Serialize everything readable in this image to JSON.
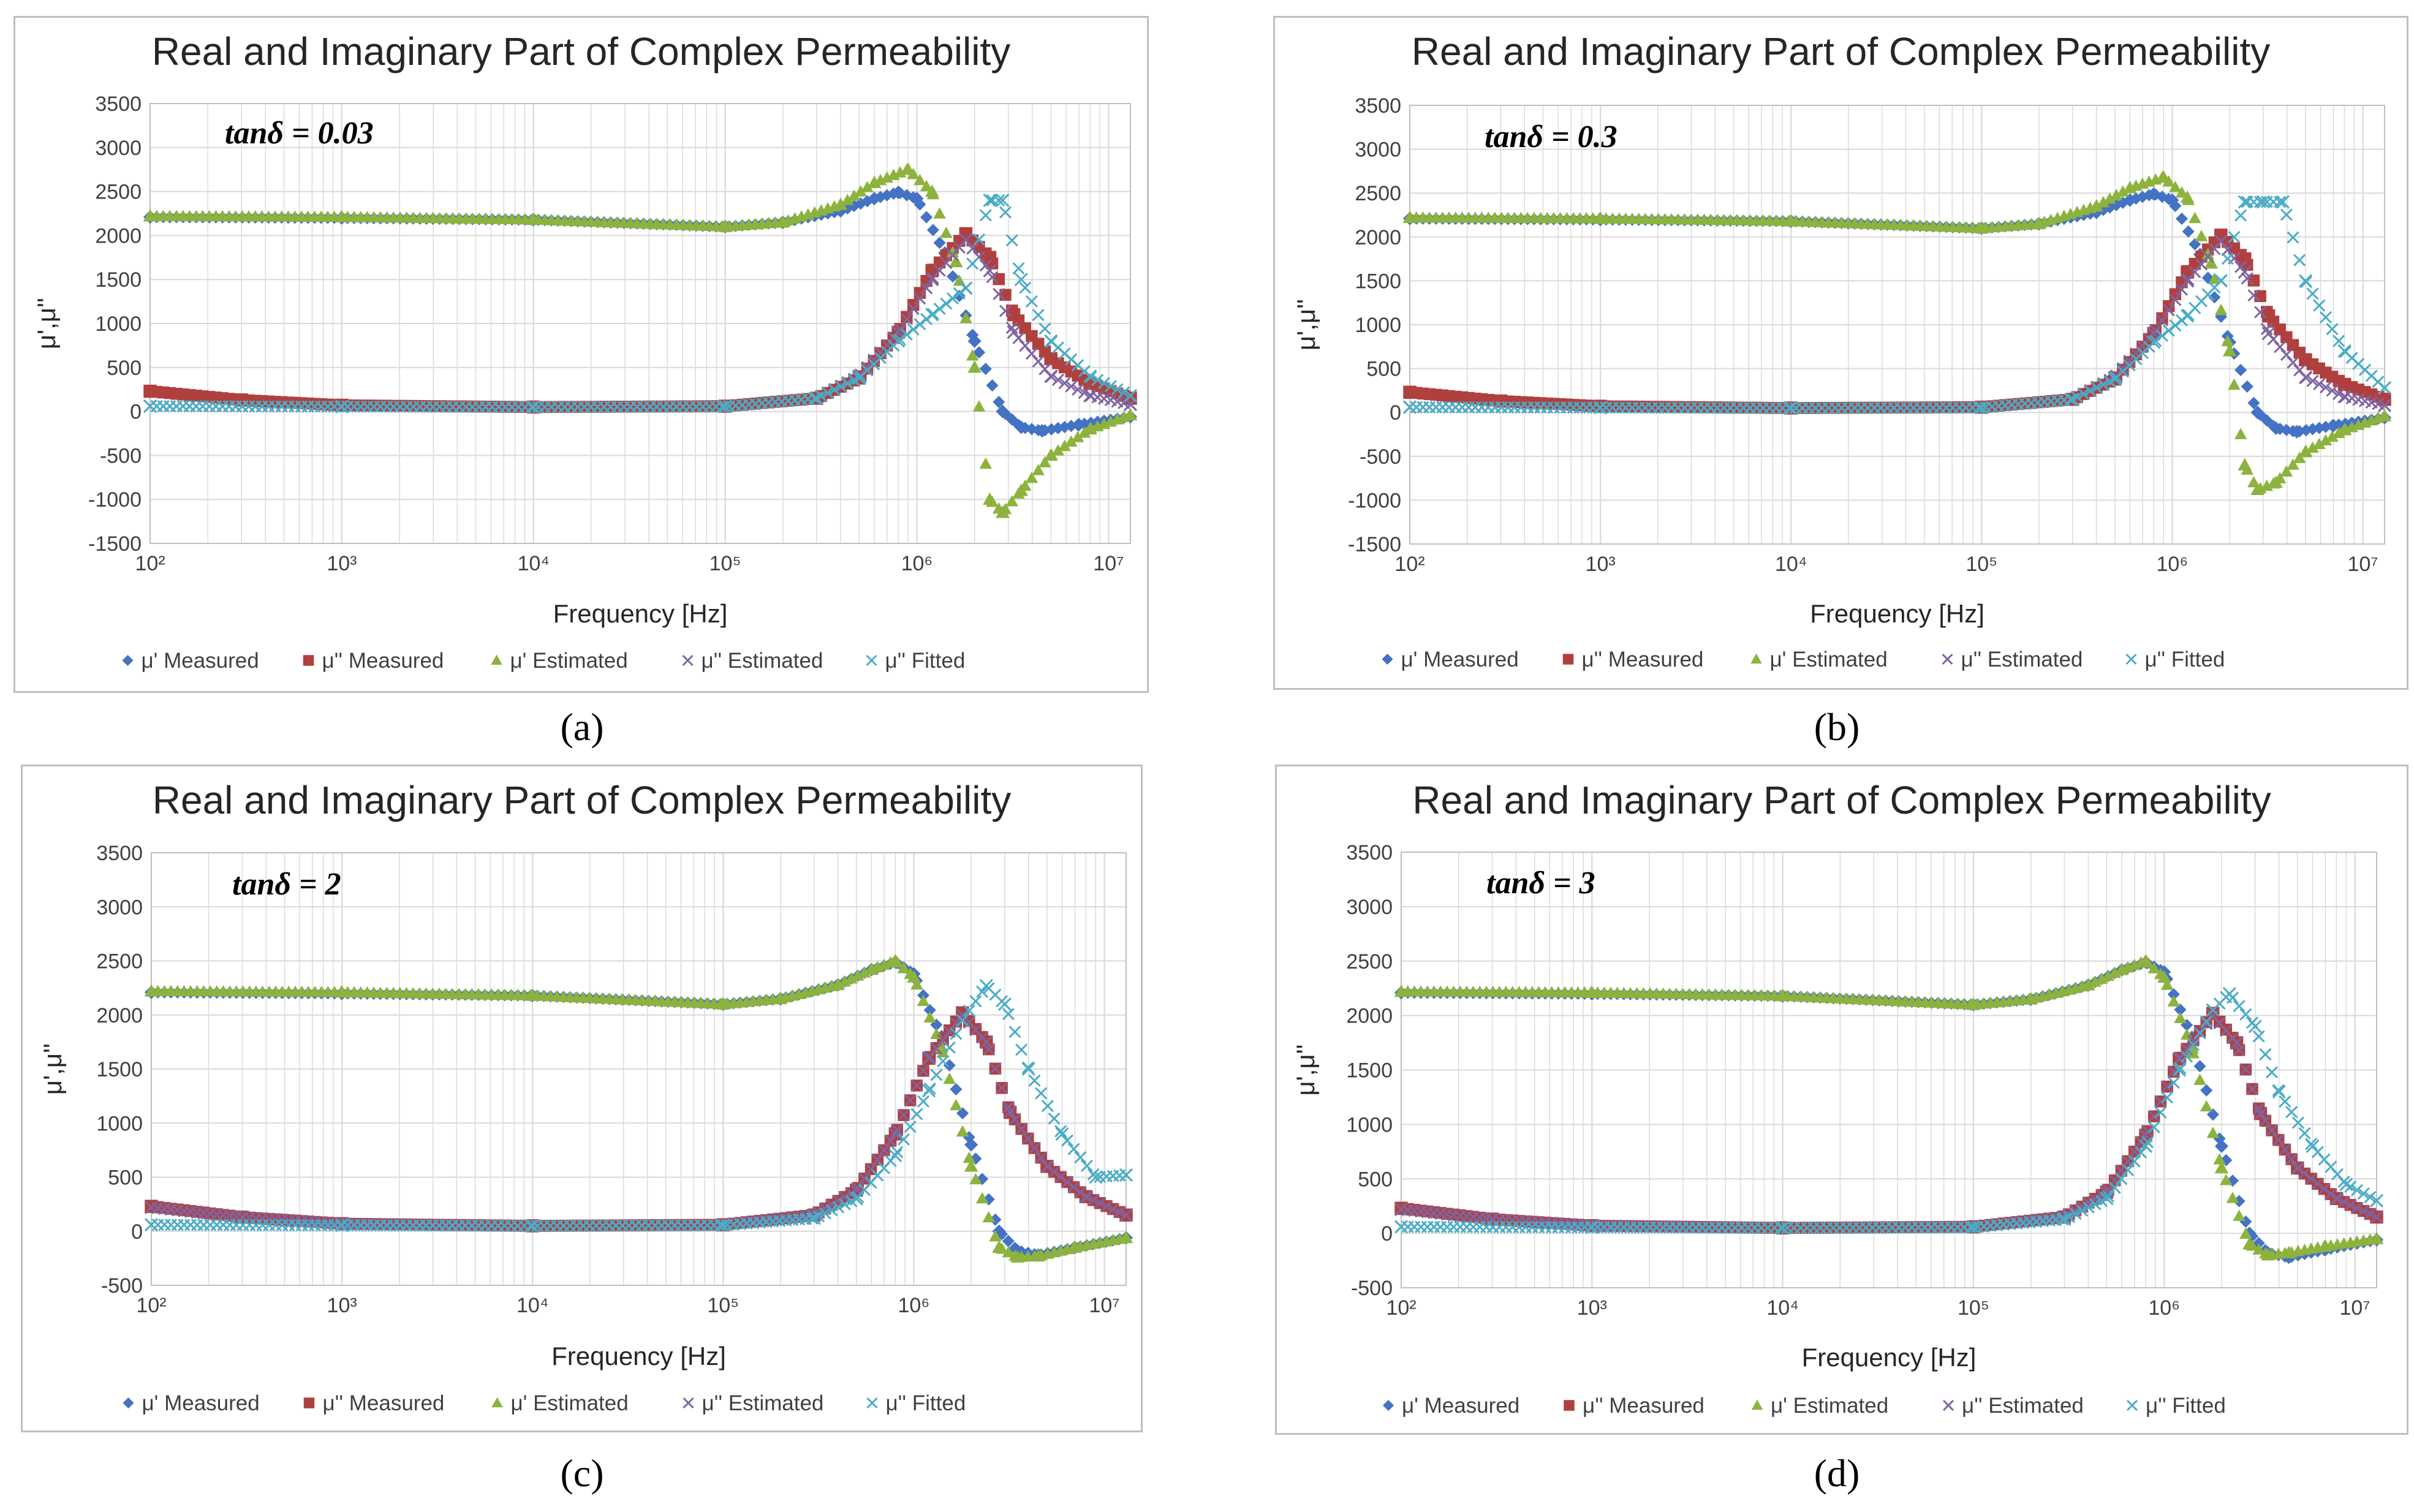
{
  "figure": {
    "colors": {
      "mu_re_measured": "#4472c4",
      "mu_im_measured": "#b0403e",
      "mu_re_estimated": "#8db33e",
      "mu_im_estimated": "#7f64a2",
      "mu_im_fitted": "#4bacc6",
      "grid": "#d9d9d9",
      "frame": "#bfbfbf"
    }
  },
  "chart_data": [
    {
      "panel": "(a)",
      "type": "scatter",
      "title": "Real and Imaginary Part of Complex Permeability",
      "annotation": "tanδ = 0.03",
      "xlabel": "Frequency [Hz]",
      "ylabel": "μ',μ''",
      "xscale": "log",
      "xlim": [
        100,
        13000000
      ],
      "ylim": [
        -1500,
        3500
      ],
      "ystep": 500,
      "xticks": [
        "10²",
        "10³",
        "10⁴",
        "10⁵",
        "10⁶",
        "10⁷"
      ],
      "yticks": [
        "3500",
        "3000",
        "2500",
        "2000",
        "1500",
        "1000",
        "500",
        "0",
        "-500",
        "-1000",
        "-1500"
      ],
      "legend": [
        "μ' Measured",
        "μ'' Measured",
        "μ' Estimated",
        "μ'' Estimated",
        "μ'' Fitted"
      ],
      "series": [
        {
          "name": "μ' Measured",
          "marker": "diamond",
          "color": "#4472c4",
          "x": [
            100,
            1000,
            10000,
            100000,
            200000,
            400000,
            600000,
            800000,
            1000000,
            1400000,
            2000000,
            2800000,
            3500000,
            4500000,
            7000000,
            13000000
          ],
          "y": [
            2210,
            2200,
            2180,
            2100,
            2150,
            2280,
            2420,
            2490,
            2420,
            1800,
            800,
            0,
            -180,
            -220,
            -150,
            -60
          ]
        },
        {
          "name": "μ'' Measured",
          "marker": "square",
          "color": "#b0403e",
          "x": [
            100,
            300,
            1000,
            10000,
            100000,
            300000,
            500000,
            800000,
            1200000,
            1800000,
            2400000,
            3200000,
            5000000,
            8000000,
            13000000
          ],
          "y": [
            230,
            130,
            70,
            50,
            60,
            150,
            380,
            900,
            1600,
            2020,
            1750,
            1100,
            600,
            320,
            150
          ]
        },
        {
          "name": "μ' Estimated",
          "marker": "triangle",
          "color": "#8db33e",
          "x": [
            100,
            1000,
            10000,
            100000,
            200000,
            400000,
            600000,
            900000,
            1200000,
            1600000,
            2000000,
            2400000,
            2800000,
            3500000,
            5000000,
            8000000,
            13000000
          ],
          "y": [
            2220,
            2210,
            2180,
            2100,
            2150,
            2350,
            2600,
            2750,
            2500,
            1700,
            500,
            -1000,
            -1150,
            -900,
            -500,
            -200,
            -40
          ]
        },
        {
          "name": "μ'' Estimated",
          "marker": "x",
          "color": "#7f64a2",
          "x": [
            100,
            1000,
            10000,
            100000,
            300000,
            500000,
            800000,
            1200000,
            1800000,
            2400000,
            3200000,
            5000000,
            8000000,
            13000000
          ],
          "y": [
            60,
            55,
            50,
            55,
            150,
            400,
            900,
            1500,
            1950,
            1600,
            900,
            400,
            180,
            80
          ]
        },
        {
          "name": "μ'' Fitted",
          "marker": "x",
          "color": "#4bacc6",
          "x": [
            100,
            1000,
            10000,
            100000,
            300000,
            500000,
            800000,
            1200000,
            1800000,
            2400000,
            2800000,
            3500000,
            5000000,
            8000000,
            13000000
          ],
          "y": [
            60,
            55,
            50,
            55,
            150,
            380,
            800,
            1100,
            1400,
            2400,
            2400,
            1500,
            800,
            400,
            180
          ]
        }
      ]
    },
    {
      "panel": "(b)",
      "type": "scatter",
      "title": "Real and Imaginary Part of Complex Permeability",
      "annotation": "tanδ = 0.3",
      "xlabel": "Frequency [Hz]",
      "ylabel": "μ',μ''",
      "xscale": "log",
      "xlim": [
        100,
        13000000
      ],
      "ylim": [
        -1500,
        3500
      ],
      "ystep": 500,
      "xticks": [
        "10²",
        "10³",
        "10⁴",
        "10⁵",
        "10⁶",
        "10⁷"
      ],
      "yticks": [
        "3500",
        "3000",
        "2500",
        "2000",
        "1500",
        "1000",
        "500",
        "0",
        "-500",
        "-1000",
        "-1500"
      ],
      "legend": [
        "μ' Measured",
        "μ'' Measured",
        "μ' Estimated",
        "μ'' Estimated",
        "μ'' Fitted"
      ],
      "series": [
        {
          "name": "μ' Measured",
          "marker": "diamond",
          "color": "#4472c4",
          "x": [
            100,
            1000,
            10000,
            100000,
            200000,
            400000,
            600000,
            800000,
            1000000,
            1400000,
            2000000,
            2800000,
            3500000,
            4500000,
            7000000,
            13000000
          ],
          "y": [
            2210,
            2200,
            2180,
            2100,
            2150,
            2280,
            2420,
            2490,
            2420,
            1800,
            800,
            0,
            -180,
            -220,
            -150,
            -60
          ]
        },
        {
          "name": "μ'' Measured",
          "marker": "square",
          "color": "#b0403e",
          "x": [
            100,
            300,
            1000,
            10000,
            100000,
            300000,
            500000,
            800000,
            1200000,
            1800000,
            2400000,
            3200000,
            5000000,
            8000000,
            13000000
          ],
          "y": [
            230,
            130,
            70,
            50,
            60,
            150,
            380,
            900,
            1600,
            2020,
            1750,
            1100,
            600,
            320,
            150
          ]
        },
        {
          "name": "μ' Estimated",
          "marker": "triangle",
          "color": "#8db33e",
          "x": [
            100,
            1000,
            10000,
            100000,
            200000,
            400000,
            600000,
            900000,
            1200000,
            1600000,
            2000000,
            2400000,
            2800000,
            3500000,
            5000000,
            8000000,
            13000000
          ],
          "y": [
            2220,
            2210,
            2180,
            2100,
            2150,
            2350,
            2560,
            2680,
            2450,
            1700,
            700,
            -600,
            -880,
            -800,
            -450,
            -200,
            -40
          ]
        },
        {
          "name": "μ'' Estimated",
          "marker": "x",
          "color": "#7f64a2",
          "x": [
            100,
            1000,
            10000,
            100000,
            300000,
            500000,
            800000,
            1200000,
            1800000,
            2400000,
            3200000,
            5000000,
            8000000,
            13000000
          ],
          "y": [
            60,
            55,
            50,
            55,
            150,
            400,
            900,
            1500,
            1950,
            1600,
            900,
            400,
            180,
            80
          ]
        },
        {
          "name": "μ'' Fitted",
          "marker": "x",
          "color": "#4bacc6",
          "x": [
            100,
            1000,
            10000,
            100000,
            300000,
            500000,
            800000,
            1200000,
            1800000,
            2400000,
            3000000,
            3800000,
            5000000,
            8000000,
            13000000
          ],
          "y": [
            60,
            55,
            50,
            55,
            150,
            380,
            800,
            1100,
            1500,
            2400,
            2400,
            2400,
            1500,
            700,
            280
          ]
        }
      ]
    },
    {
      "panel": "(c)",
      "type": "scatter",
      "title": "Real and Imaginary Part of Complex Permeability",
      "annotation": "tanδ = 2",
      "xlabel": "Frequency [Hz]",
      "ylabel": "μ',μ''",
      "xscale": "log",
      "xlim": [
        100,
        13000000
      ],
      "ylim": [
        -500,
        3500
      ],
      "ystep": 500,
      "xticks": [
        "10²",
        "10³",
        "10⁴",
        "10⁵",
        "10⁶",
        "10⁷"
      ],
      "yticks": [
        "3500",
        "3000",
        "2500",
        "2000",
        "1500",
        "1000",
        "500",
        "0",
        "-500"
      ],
      "legend": [
        "μ' Measured",
        "μ'' Measured",
        "μ' Estimated",
        "μ'' Estimated",
        "μ'' Fitted"
      ],
      "series": [
        {
          "name": "μ' Measured",
          "marker": "diamond",
          "color": "#4472c4",
          "x": [
            100,
            1000,
            10000,
            100000,
            200000,
            400000,
            600000,
            800000,
            1000000,
            1400000,
            2000000,
            2800000,
            3500000,
            4500000,
            7000000,
            13000000
          ],
          "y": [
            2210,
            2200,
            2180,
            2100,
            2150,
            2280,
            2420,
            2490,
            2380,
            1800,
            800,
            0,
            -180,
            -220,
            -150,
            -60
          ]
        },
        {
          "name": "μ'' Measured",
          "marker": "square",
          "color": "#b0403e",
          "x": [
            100,
            300,
            1000,
            10000,
            100000,
            300000,
            500000,
            800000,
            1200000,
            1800000,
            2400000,
            3200000,
            5000000,
            8000000,
            13000000
          ],
          "y": [
            230,
            130,
            70,
            50,
            60,
            150,
            380,
            900,
            1600,
            2020,
            1750,
            1100,
            600,
            320,
            150
          ]
        },
        {
          "name": "μ' Estimated",
          "marker": "triangle",
          "color": "#8db33e",
          "x": [
            100,
            1000,
            10000,
            100000,
            200000,
            400000,
            600000,
            800000,
            1000000,
            1400000,
            2000000,
            2800000,
            3500000,
            4500000,
            7000000,
            13000000
          ],
          "y": [
            2220,
            2210,
            2180,
            2100,
            2150,
            2280,
            2420,
            2500,
            2350,
            1700,
            600,
            -150,
            -240,
            -230,
            -150,
            -60
          ]
        },
        {
          "name": "μ'' Estimated",
          "marker": "x",
          "color": "#7f64a2",
          "x": [
            100,
            300,
            1000,
            10000,
            100000,
            300000,
            500000,
            800000,
            1200000,
            1800000,
            2400000,
            3200000,
            5000000,
            8000000,
            13000000
          ],
          "y": [
            220,
            130,
            70,
            50,
            60,
            150,
            380,
            900,
            1600,
            2000,
            1750,
            1100,
            600,
            320,
            150
          ]
        },
        {
          "name": "μ'' Fitted",
          "marker": "x",
          "color": "#4bacc6",
          "x": [
            100,
            1000,
            10000,
            100000,
            300000,
            500000,
            800000,
            1200000,
            1800000,
            2400000,
            3000000,
            4000000,
            6000000,
            9000000,
            13000000
          ],
          "y": [
            60,
            55,
            50,
            55,
            120,
            300,
            700,
            1300,
            1950,
            2270,
            2100,
            1500,
            900,
            500,
            520
          ]
        }
      ]
    },
    {
      "panel": "(d)",
      "type": "scatter",
      "title": "Real and Imaginary Part of Complex Permeability",
      "annotation": "tanδ = 3",
      "xlabel": "Frequency [Hz]",
      "ylabel": "μ',μ''",
      "xscale": "log",
      "xlim": [
        100,
        13000000
      ],
      "ylim": [
        -500,
        3500
      ],
      "ystep": 500,
      "xticks": [
        "10²",
        "10³",
        "10⁴",
        "10⁵",
        "10⁶",
        "10⁷"
      ],
      "yticks": [
        "3500",
        "3000",
        "2500",
        "2000",
        "1500",
        "1000",
        "500",
        "0",
        "-500"
      ],
      "legend": [
        "μ' Measured",
        "μ'' Measured",
        "μ' Estimated",
        "μ'' Estimated",
        "μ'' Fitted"
      ],
      "series": [
        {
          "name": "μ' Measured",
          "marker": "diamond",
          "color": "#4472c4",
          "x": [
            100,
            1000,
            10000,
            100000,
            200000,
            400000,
            600000,
            800000,
            1000000,
            1400000,
            2000000,
            2800000,
            3500000,
            4500000,
            7000000,
            13000000
          ],
          "y": [
            2210,
            2200,
            2180,
            2100,
            2150,
            2280,
            2420,
            2490,
            2400,
            1800,
            800,
            0,
            -180,
            -220,
            -150,
            -60
          ]
        },
        {
          "name": "μ'' Measured",
          "marker": "square",
          "color": "#b0403e",
          "x": [
            100,
            300,
            1000,
            10000,
            100000,
            300000,
            500000,
            800000,
            1200000,
            1800000,
            2400000,
            3200000,
            5000000,
            8000000,
            13000000
          ],
          "y": [
            230,
            130,
            70,
            50,
            60,
            150,
            380,
            900,
            1600,
            2020,
            1750,
            1100,
            600,
            320,
            150
          ]
        },
        {
          "name": "μ' Estimated",
          "marker": "triangle",
          "color": "#8db33e",
          "x": [
            100,
            1000,
            10000,
            100000,
            200000,
            400000,
            600000,
            800000,
            1000000,
            1400000,
            2000000,
            2800000,
            3500000,
            4500000,
            7000000,
            13000000
          ],
          "y": [
            2220,
            2210,
            2180,
            2100,
            2150,
            2280,
            2420,
            2500,
            2350,
            1700,
            600,
            -100,
            -200,
            -180,
            -120,
            -50
          ]
        },
        {
          "name": "μ'' Estimated",
          "marker": "x",
          "color": "#7f64a2",
          "x": [
            100,
            300,
            1000,
            10000,
            100000,
            300000,
            500000,
            800000,
            1200000,
            1800000,
            2400000,
            3200000,
            5000000,
            8000000,
            13000000
          ],
          "y": [
            220,
            130,
            70,
            50,
            60,
            150,
            380,
            900,
            1600,
            2000,
            1750,
            1100,
            600,
            320,
            150
          ]
        },
        {
          "name": "μ'' Fitted",
          "marker": "x",
          "color": "#4bacc6",
          "x": [
            100,
            1000,
            10000,
            100000,
            300000,
            500000,
            800000,
            1200000,
            1800000,
            2200000,
            3000000,
            4000000,
            6000000,
            9000000,
            13000000
          ],
          "y": [
            60,
            55,
            50,
            55,
            130,
            320,
            800,
            1500,
            2050,
            2200,
            1900,
            1300,
            800,
            450,
            300
          ]
        }
      ]
    }
  ]
}
